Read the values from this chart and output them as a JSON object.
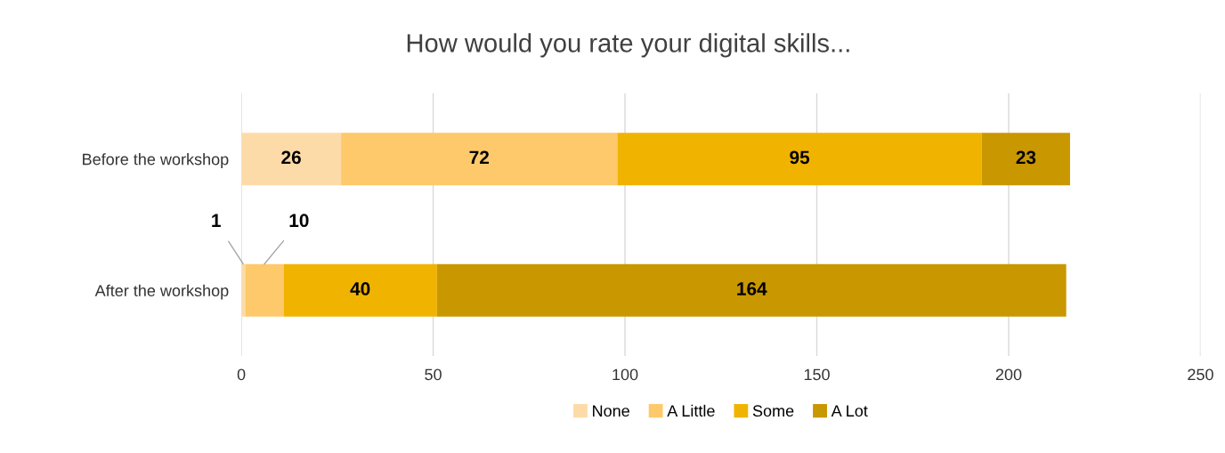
{
  "chart_data": {
    "type": "bar",
    "title": "How would you rate your digital skills...",
    "orientation": "horizontal",
    "stacked": true,
    "categories": [
      "Before the workshop",
      "After the workshop"
    ],
    "series": [
      {
        "name": "None",
        "color": "#fddba8",
        "values": [
          26,
          1
        ]
      },
      {
        "name": "A Little",
        "color": "#fdc96b",
        "values": [
          72,
          10
        ]
      },
      {
        "name": "Some",
        "color": "#f0b400",
        "values": [
          95,
          40
        ]
      },
      {
        "name": "A Lot",
        "color": "#c99700",
        "values": [
          23,
          164
        ]
      }
    ],
    "xlim": [
      0,
      250
    ],
    "xticks": [
      0,
      50,
      100,
      150,
      200,
      250
    ],
    "grid": "x",
    "legend": "bottom",
    "data_labels": true
  }
}
